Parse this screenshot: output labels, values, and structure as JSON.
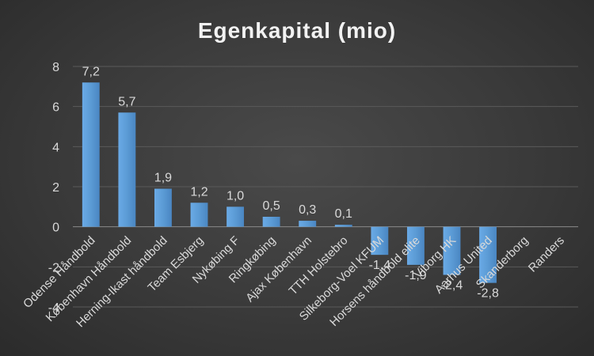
{
  "chart_data": {
    "type": "bar",
    "title": "Egenkapital (mio)",
    "xlabel": "",
    "ylabel": "",
    "ylim": [
      -4,
      8
    ],
    "yticks": [
      -4,
      -2,
      0,
      2,
      4,
      6,
      8
    ],
    "grid": true,
    "legend": "none",
    "bar_color": "#5b9bd5",
    "categories": [
      "Odense Håndbold",
      "København Håndbold",
      "Herning-Ikast håndbold",
      "Team Esbjerg",
      "Nykøbing F",
      "Ringkøbing",
      "Ajax København",
      "TTH Holstebro",
      "Silkeborg-Voel KFUM",
      "Horsens håndbold elite",
      "Viborg HK",
      "Aarhus United",
      "Skanderborg",
      "Randers"
    ],
    "values": [
      7.2,
      5.7,
      1.9,
      1.2,
      1.0,
      0.5,
      0.3,
      0.1,
      -1.4,
      -1.9,
      -2.4,
      -2.8,
      null,
      null
    ],
    "data_labels": [
      "7,2",
      "5,7",
      "1,9",
      "1,2",
      "1,0",
      "0,5",
      "0,3",
      "0,1",
      "-1,4",
      "-1,9",
      "-2,4",
      "-2,8",
      "",
      ""
    ]
  }
}
